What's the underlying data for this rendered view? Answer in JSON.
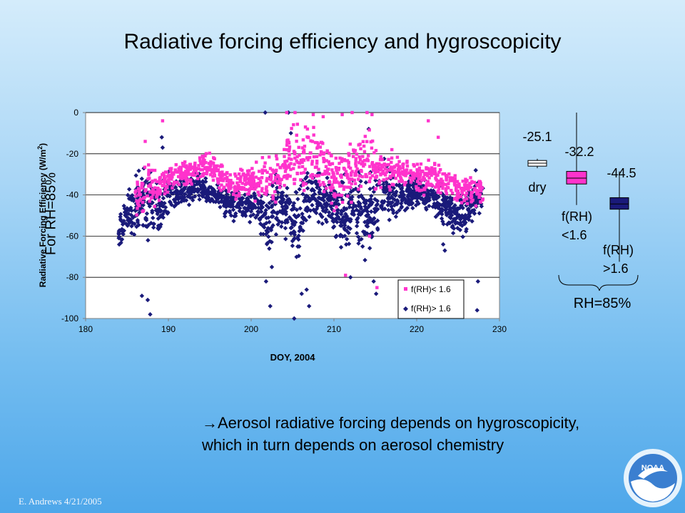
{
  "slide": {
    "title": "Radiative forcing efficiency and hygroscopicity",
    "side_label": "For RH=85%",
    "note_arrow": "→",
    "note_line1": "Aerosol radiative forcing depends on hygroscopicity,",
    "note_line2": "which in turn depends on aerosol chemistry",
    "credit": "E. Andrews  4/21/2005",
    "logo_text": "NOAA"
  },
  "colors": {
    "pink": "#ff33cc",
    "navy": "#1a1a7a",
    "dry": "#ffffff"
  },
  "chart_data": [
    {
      "type": "scatter",
      "title": "",
      "xlabel": "DOY, 2004",
      "ylabel": "Radiative Forcing Efficiency (W/m",
      "ylabel_sup": "2",
      "ylabel_end": ")",
      "xlim": [
        180,
        230
      ],
      "ylim": [
        -100,
        0
      ],
      "xticks": [
        180,
        190,
        200,
        210,
        220,
        230
      ],
      "yticks": [
        0,
        -20,
        -40,
        -60,
        -80,
        -100
      ],
      "grid": "horizontal",
      "legend": "bottom-right",
      "series": [
        {
          "name": "f(RH)< 1.6",
          "color": "#ff33cc",
          "marker": "square",
          "profile": [
            [
              186.5,
              -40,
              8
            ],
            [
              187.5,
              -35,
              9
            ],
            [
              188.5,
              -38,
              7
            ],
            [
              189.5,
              -33,
              6
            ],
            [
              191.5,
              -30,
              5
            ],
            [
              193,
              -28,
              6
            ],
            [
              194.5,
              -25,
              5
            ],
            [
              196.5,
              -32,
              6
            ],
            [
              198,
              -36,
              5
            ],
            [
              203.5,
              -30,
              10
            ],
            [
              204.8,
              -22,
              12
            ],
            [
              206.5,
              -22,
              14
            ],
            [
              208.5,
              -24,
              12
            ],
            [
              210,
              -32,
              12
            ],
            [
              212,
              -30,
              10
            ],
            [
              213.8,
              -22,
              14
            ],
            [
              215.5,
              -28,
              10
            ],
            [
              217.5,
              -28,
              6
            ],
            [
              219,
              -30,
              5
            ],
            [
              220.5,
              -32,
              6
            ],
            [
              221.8,
              -30,
              7
            ],
            [
              223.5,
              -35,
              6
            ],
            [
              226,
              -38,
              6
            ],
            [
              227.5,
              -36,
              6
            ]
          ],
          "outliers": [
            [
              187.2,
              -14
            ],
            [
              189.3,
              -4
            ],
            [
              193.8,
              -22
            ],
            [
              204.3,
              0
            ],
            [
              205.3,
              0
            ],
            [
              206.8,
              -8
            ],
            [
              207.5,
              -1
            ],
            [
              208.7,
              -2
            ],
            [
              211,
              -1
            ],
            [
              212.2,
              0
            ],
            [
              214,
              0
            ],
            [
              214.6,
              -1
            ],
            [
              217,
              -18
            ],
            [
              221.4,
              -4
            ],
            [
              222.6,
              -12
            ],
            [
              211.4,
              -79
            ],
            [
              215.2,
              -85
            ],
            [
              214.3,
              -60
            ],
            [
              228,
              -42
            ]
          ]
        },
        {
          "name": "f(RH)> 1.6",
          "color": "#1a1a7a",
          "marker": "diamond",
          "profile": [
            [
              184,
              -58,
              6
            ],
            [
              185.5,
              -48,
              10
            ],
            [
              187.2,
              -42,
              14
            ],
            [
              188.5,
              -45,
              12
            ],
            [
              190,
              -40,
              8
            ],
            [
              191.5,
              -38,
              6
            ],
            [
              193.5,
              -36,
              5
            ],
            [
              195.5,
              -40,
              5
            ],
            [
              197.5,
              -45,
              6
            ],
            [
              199.2,
              -46,
              6
            ],
            [
              200.5,
              -44,
              6
            ],
            [
              201.8,
              -52,
              12
            ],
            [
              203,
              -45,
              14
            ],
            [
              204.5,
              -48,
              10
            ],
            [
              205.5,
              -55,
              14
            ],
            [
              206.3,
              -44,
              12
            ],
            [
              207.5,
              -42,
              10
            ],
            [
              209.5,
              -43,
              9
            ],
            [
              211.3,
              -52,
              14
            ],
            [
              212.5,
              -43,
              12
            ],
            [
              214,
              -52,
              16
            ],
            [
              215,
              -45,
              15
            ],
            [
              216.3,
              -38,
              12
            ],
            [
              217.8,
              -42,
              8
            ],
            [
              220.5,
              -38,
              6
            ],
            [
              222.5,
              -44,
              7
            ],
            [
              223.8,
              -47,
              8
            ],
            [
              225.5,
              -50,
              7
            ],
            [
              227.2,
              -40,
              10
            ]
          ],
          "outliers": [
            [
              187.8,
              -98
            ],
            [
              187.5,
              -91
            ],
            [
              186.8,
              -89
            ],
            [
              189.2,
              -12
            ],
            [
              189.3,
              -17
            ],
            [
              201.7,
              0
            ],
            [
              201.8,
              -82
            ],
            [
              202.3,
              -94
            ],
            [
              202.5,
              -75
            ],
            [
              204.5,
              0
            ],
            [
              205.2,
              -100
            ],
            [
              206.1,
              -88
            ],
            [
              207,
              -94
            ],
            [
              206.7,
              -86
            ],
            [
              211.3,
              -30
            ],
            [
              212,
              -80
            ],
            [
              214.2,
              -8
            ],
            [
              215.1,
              -88
            ],
            [
              214.8,
              -82
            ],
            [
              227.3,
              -96
            ],
            [
              227.4,
              -82
            ],
            [
              223.2,
              -64
            ],
            [
              223.4,
              -67
            ],
            [
              204.8,
              -10
            ]
          ]
        }
      ]
    },
    {
      "type": "box",
      "title": "",
      "boxes": [
        {
          "value_label": "-25.1",
          "label": "dry",
          "color": "#ffffff",
          "median": -25.1,
          "q1": -26.5,
          "q3": -23.8,
          "wmin": -27.5,
          "wmax": -23.0
        },
        {
          "value_label": "-32.2",
          "label": "f(RH) <1.6",
          "label1": "f(RH)",
          "label2": "<1.6",
          "color": "#ff33cc",
          "median": -32.2,
          "q1": -35.0,
          "q3": -29.0,
          "wmin": -45.0,
          "wmax": -1.0
        },
        {
          "value_label": "-44.5",
          "label": "f(RH) >1.6",
          "label1": "f(RH)",
          "label2": ">1.6",
          "color": "#1a1a7a",
          "median": -44.5,
          "q1": -47.0,
          "q3": -41.5,
          "wmin": -72.0,
          "wmax": -29.0
        }
      ],
      "group_label": "RH=85%"
    }
  ]
}
